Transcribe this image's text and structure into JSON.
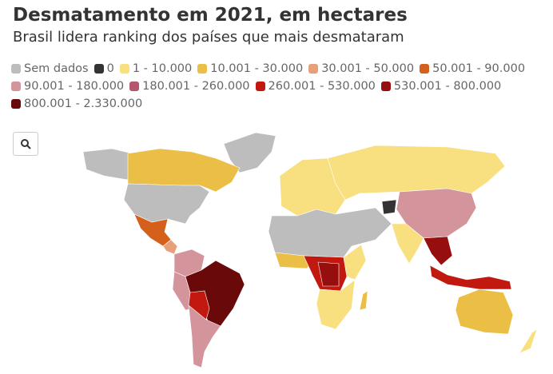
{
  "header": {
    "title": "Desmatamento em 2021, em hectares",
    "subtitle": "Brasil lidera ranking dos países que mais desmataram"
  },
  "legend": [
    {
      "label": "Sem dados",
      "color": "#bdbdbd"
    },
    {
      "label": "0",
      "color": "#333333"
    },
    {
      "label": "1 - 10.000",
      "color": "#f8df7f"
    },
    {
      "label": "10.001 - 30.000",
      "color": "#ebbf45"
    },
    {
      "label": "30.001 - 50.000",
      "color": "#e8a07a"
    },
    {
      "label": "50.001 - 90.000",
      "color": "#d4601c"
    },
    {
      "label": "90.001 - 180.000",
      "color": "#d4949b"
    },
    {
      "label": "180.001 - 260.000",
      "color": "#b4566c"
    },
    {
      "label": "260.001 - 530.000",
      "color": "#c1180f"
    },
    {
      "label": "530.001 - 800.000",
      "color": "#960e0e"
    },
    {
      "label": "800.001 - 2.330.000",
      "color": "#6a0909"
    }
  ]
}
